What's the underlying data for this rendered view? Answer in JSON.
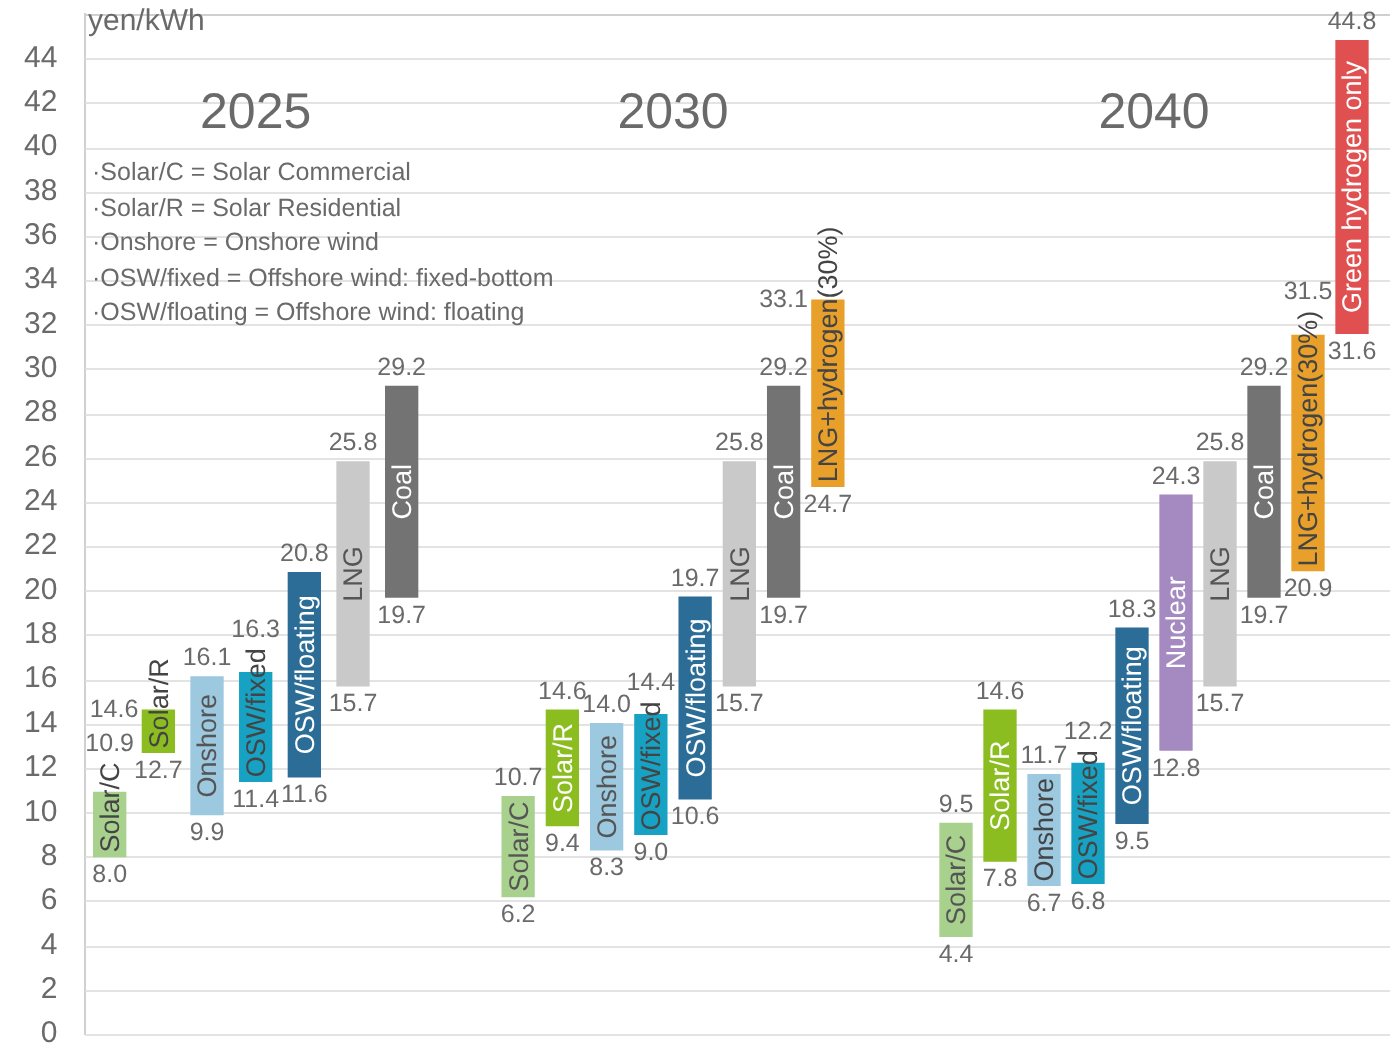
{
  "chart_data": [
    {
      "type": "bar",
      "title": "2025",
      "ylabel": "yen/kWh",
      "categories": [
        "Solar/C",
        "Solar/R",
        "Onshore",
        "OSW/fixed",
        "OSW/floating",
        "LNG",
        "Coal"
      ],
      "base": [
        8.0,
        12.7,
        9.9,
        11.4,
        11.6,
        15.7,
        19.7
      ],
      "values": [
        2.9,
        1.9,
        6.2,
        4.9,
        9.2,
        10.1,
        9.5
      ],
      "colors": [
        "#a9d18e",
        "#8cbd20",
        "#9cc8e0",
        "#17a2c4",
        "#2b6d96",
        "#c9c9c9",
        "#737373"
      ],
      "ylim": [
        0,
        46
      ],
      "yticks": [
        0,
        2,
        4,
        6,
        8,
        10,
        12,
        14,
        16,
        18,
        20,
        22,
        24,
        26,
        28,
        30,
        32,
        34,
        36,
        38,
        40,
        42,
        44
      ],
      "grid": "y",
      "legend": false,
      "annotations": [
        "·Solar/C = Solar Commercial",
        "·Solar/R = Solar Residential",
        "·Onshore = Onshore wind",
        "·OSW/fixed = Offshore wind: fixed-bottom",
        "·OSW/floating = Offshore wind: floating",
        {
          "text": "10.9",
          "x": "Solar/C",
          "y": 10.9
        },
        {
          "text": "8.0",
          "x": "Solar/C",
          "y": 8.0
        },
        {
          "text": "14.6",
          "x": "Solar/R",
          "y": 14.6
        },
        {
          "text": "12.7",
          "x": "Solar/R",
          "y": 12.7
        },
        {
          "text": "16.1",
          "x": "Onshore",
          "y": 16.1
        },
        {
          "text": "9.9",
          "x": "Onshore",
          "y": 9.9
        },
        {
          "text": "16.3",
          "x": "OSW/fixed",
          "y": 16.3
        },
        {
          "text": "11.4",
          "x": "OSW/fixed",
          "y": 11.4
        },
        {
          "text": "20.8",
          "x": "OSW/floating",
          "y": 20.8
        },
        {
          "text": "11.6",
          "x": "OSW/floating",
          "y": 11.6
        },
        {
          "text": "25.8",
          "x": "LNG",
          "y": 25.8
        },
        {
          "text": "15.7",
          "x": "LNG",
          "y": 15.7
        },
        {
          "text": "29.2",
          "x": "Coal",
          "y": 29.2
        },
        {
          "text": "19.7",
          "x": "Coal",
          "y": 19.7
        }
      ]
    },
    {
      "type": "bar",
      "title": "2030",
      "categories": [
        "Solar/C",
        "Solar/R",
        "Onshore",
        "OSW/fixed",
        "OSW/floating",
        "LNG",
        "Coal",
        "LNG+hydrogen(30%)"
      ],
      "base": [
        6.2,
        9.4,
        8.3,
        9.0,
        10.6,
        15.7,
        19.7,
        24.7
      ],
      "values": [
        4.5,
        5.2,
        5.7,
        5.4,
        9.1,
        10.1,
        9.5,
        8.4
      ],
      "colors": [
        "#a9d18e",
        "#8cbd20",
        "#9cc8e0",
        "#17a2c4",
        "#2b6d96",
        "#c9c9c9",
        "#737373",
        "#e8a02a"
      ],
      "ylim": [
        0,
        46
      ],
      "yticks": [
        0,
        2,
        4,
        6,
        8,
        10,
        12,
        14,
        16,
        18,
        20,
        22,
        24,
        26,
        28,
        30,
        32,
        34,
        36,
        38,
        40,
        42,
        44
      ],
      "grid": "y",
      "legend": false,
      "tick_labels": "x",
      "annotations": [
        {
          "text": "10.7",
          "x": "Solar/C",
          "y": 10.7
        },
        {
          "text": "6.2",
          "x": "Solar/C",
          "y": 6.2
        },
        {
          "text": "14.6",
          "x": "Solar/R",
          "y": 14.6
        },
        {
          "text": "9.4",
          "x": "Solar/R",
          "y": 9.4
        },
        {
          "text": "14.0",
          "x": "Onshore",
          "y": 14.0
        },
        {
          "text": "8.3",
          "x": "Onshore",
          "y": 8.3
        },
        {
          "text": "14.4",
          "x": "OSW/fixed",
          "y": 14.4
        },
        {
          "text": "9.0",
          "x": "OSW/fixed",
          "y": 9.0
        },
        {
          "text": "19.7",
          "x": "OSW/floating",
          "y": 19.7
        },
        {
          "text": "10.6",
          "x": "OSW/floating",
          "y": 10.6
        },
        {
          "text": "25.8",
          "x": "LNG",
          "y": 25.8
        },
        {
          "text": "15.7",
          "x": "LNG",
          "y": 15.7
        },
        {
          "text": "29.2",
          "x": "Coal",
          "y": 29.2
        },
        {
          "text": "19.7",
          "x": "Coal",
          "y": 19.7
        },
        {
          "text": "33.1",
          "x": "LNG+hydrogen(30%)",
          "y": 33.1
        },
        {
          "text": "24.7",
          "x": "LNG+hydrogen(30%)",
          "y": 24.7
        }
      ]
    },
    {
      "type": "bar",
      "title": "2040",
      "categories": [
        "Solar/C",
        "Solar/R",
        "Onshore",
        "OSW/fixed",
        "OSW/floating",
        "Nuclear",
        "LNG",
        "Coal",
        "LNG+hydrogen(30%)",
        "Green hydrogen only"
      ],
      "base": [
        4.4,
        7.8,
        6.7,
        6.8,
        9.5,
        12.8,
        15.7,
        19.7,
        20.9,
        31.6
      ],
      "values": [
        5.1,
        6.8,
        5.0,
        5.4,
        8.8,
        11.5,
        10.1,
        9.5,
        10.6,
        13.2
      ],
      "colors": [
        "#a9d18e",
        "#8cbd20",
        "#9cc8e0",
        "#17a2c4",
        "#2b6d96",
        "#a48ac0",
        "#c9c9c9",
        "#737373",
        "#e8a02a",
        "#e05050"
      ],
      "ylim": [
        0,
        46
      ],
      "yticks": [
        0,
        2,
        4,
        6,
        8,
        10,
        12,
        14,
        16,
        18,
        20,
        22,
        24,
        26,
        28,
        30,
        32,
        34,
        36,
        38,
        40,
        42,
        44
      ],
      "grid": "y",
      "legend": false,
      "tick_labels": "x",
      "annotations": [
        {
          "text": "9.5",
          "x": "Solar/C",
          "y": 9.5
        },
        {
          "text": "4.4",
          "x": "Solar/C",
          "y": 4.4
        },
        {
          "text": "14.6",
          "x": "Solar/R",
          "y": 14.6
        },
        {
          "text": "7.8",
          "x": "Solar/R",
          "y": 7.8
        },
        {
          "text": "11.7",
          "x": "Onshore",
          "y": 11.7
        },
        {
          "text": "6.7",
          "x": "Onshore",
          "y": 6.7
        },
        {
          "text": "12.2",
          "x": "OSW/fixed",
          "y": 12.2
        },
        {
          "text": "6.8",
          "x": "OSW/fixed",
          "y": 6.8
        },
        {
          "text": "18.3",
          "x": "OSW/floating",
          "y": 18.3
        },
        {
          "text": "9.5",
          "x": "OSW/floating",
          "y": 9.5
        },
        {
          "text": "24.3",
          "x": "Nuclear",
          "y": 24.3
        },
        {
          "text": "12.8",
          "x": "Nuclear",
          "y": 12.8
        },
        {
          "text": "25.8",
          "x": "LNG",
          "y": 25.8
        },
        {
          "text": "15.7",
          "x": "LNG",
          "y": 15.7
        },
        {
          "text": "29.2",
          "x": "Coal",
          "y": 29.2
        },
        {
          "text": "19.7",
          "x": "Coal",
          "y": 19.7
        },
        {
          "text": "31.5",
          "x": "LNG+hydrogen(30%)",
          "y": 31.5
        },
        {
          "text": "20.9",
          "x": "LNG+hydrogen(30%)",
          "y": 20.9
        },
        {
          "text": "44.8",
          "x": "Green hydrogen only",
          "y": 44.8
        },
        {
          "text": "31.6",
          "x": "Green hydrogen only",
          "y": 31.6
        }
      ]
    }
  ]
}
